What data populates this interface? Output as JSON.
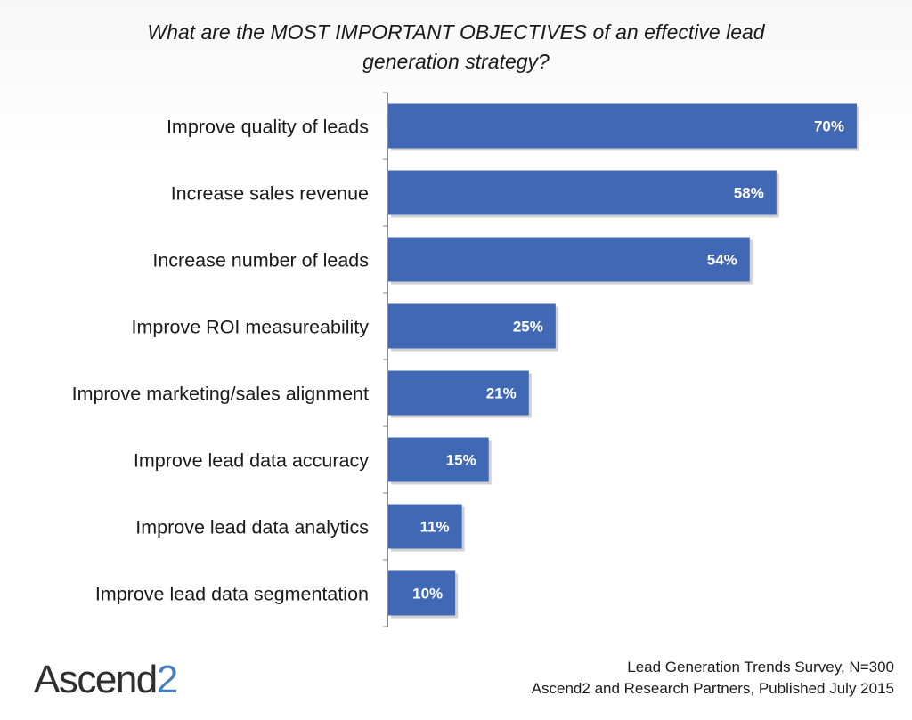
{
  "title": "What are the MOST IMPORTANT OBJECTIVES of an effective lead generation strategy?",
  "logo": {
    "text": "Ascend",
    "number": "2"
  },
  "source": {
    "line1": "Lead Generation Trends Survey, N=300",
    "line2": "Ascend2 and Research Partners, Published July 2015"
  },
  "colors": {
    "bar": "#4168b4",
    "axis": "#8c8c8c"
  },
  "chart_data": {
    "type": "bar",
    "orientation": "horizontal",
    "title": "What are the MOST IMPORTANT OBJECTIVES of an effective lead generation strategy?",
    "categories": [
      "Improve quality of leads",
      "Increase sales revenue",
      "Increase number of leads",
      "Improve ROI measureability",
      "Improve marketing/sales alignment",
      "Improve lead data accuracy",
      "Improve lead data analytics",
      "Improve lead data segmentation"
    ],
    "values": [
      70,
      58,
      54,
      25,
      21,
      15,
      11,
      10
    ],
    "value_labels": [
      "70%",
      "58%",
      "54%",
      "25%",
      "21%",
      "15%",
      "11%",
      "10%"
    ],
    "unit": "%",
    "xlim": [
      0,
      70
    ],
    "grid": false,
    "legend": "none"
  }
}
